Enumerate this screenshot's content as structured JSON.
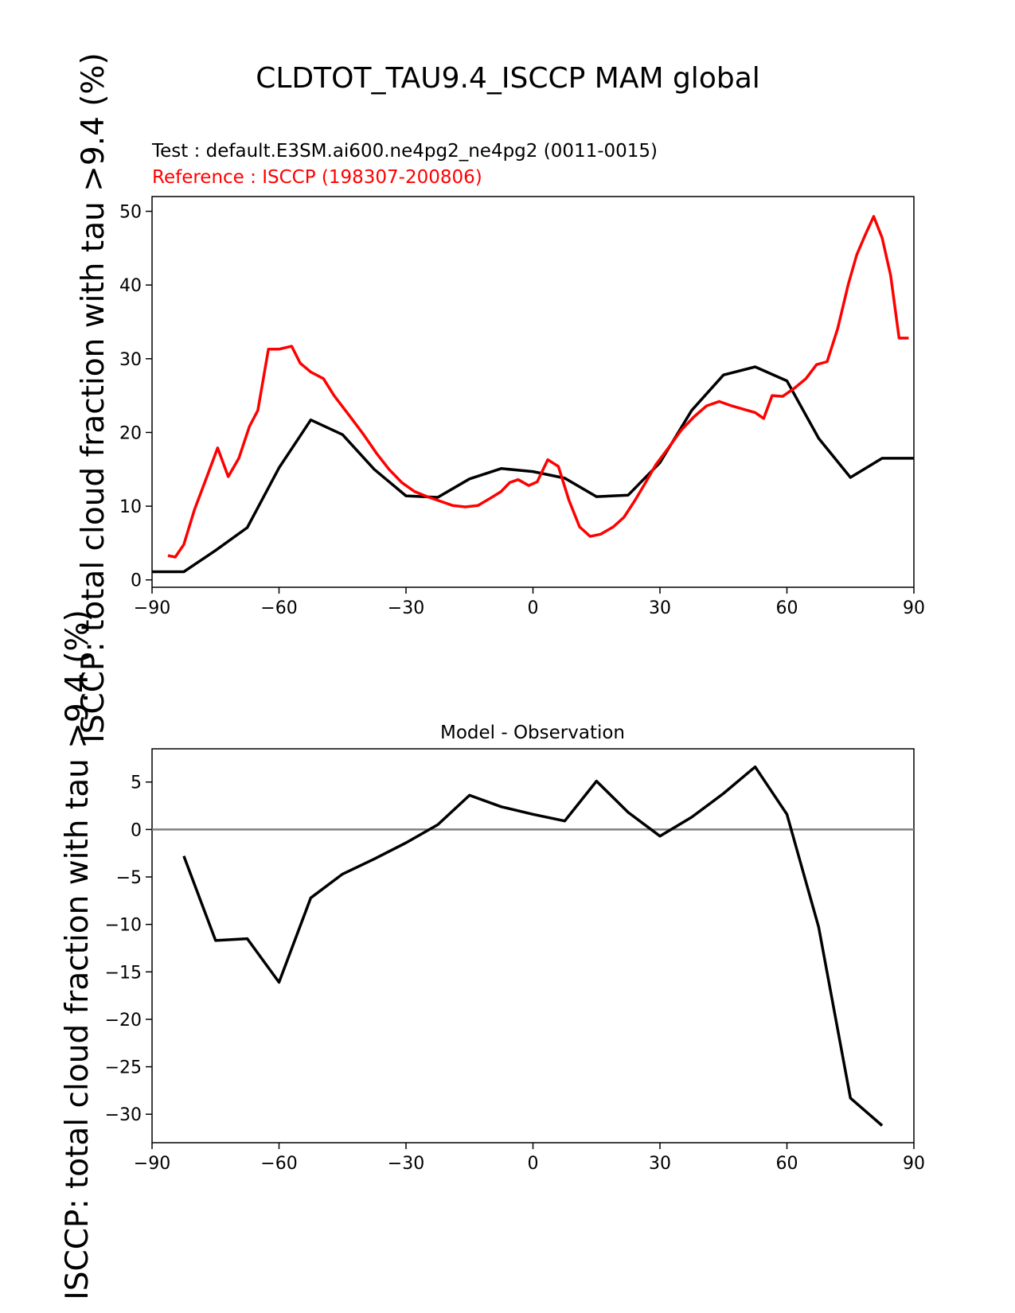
{
  "figure": {
    "title": "CLDTOT_TAU9.4_ISCCP MAM global",
    "ylabel": "ISCCP: total cloud fraction with tau >9.4 (%)"
  },
  "chart_data": [
    {
      "type": "line",
      "test_label": "Test : default.E3SM.ai600.ne4pg2_ne4pg2 (0011-0015)",
      "reference_label": "Reference : ISCCP (198307-200806)",
      "ylabel": "ISCCP: total cloud fraction with tau >9.4 (%)",
      "xlim": [
        -90,
        90
      ],
      "ylim": [
        -1,
        52
      ],
      "xticks": [
        -90,
        -60,
        -30,
        0,
        30,
        60,
        90
      ],
      "yticks": [
        0,
        10,
        20,
        30,
        40,
        50
      ],
      "colors": {
        "test": "#000000",
        "reference": "#ff0000"
      },
      "series": [
        {
          "name": "test",
          "x": [
            -90,
            -82.5,
            -75,
            -67.5,
            -60,
            -52.5,
            -45,
            -37.5,
            -30,
            -22.5,
            -15,
            -7.5,
            0,
            7.5,
            15,
            22.5,
            30,
            37.5,
            45,
            52.5,
            60,
            67.5,
            75,
            82.5,
            90
          ],
          "y": [
            1.1,
            1.1,
            4.0,
            7.1,
            15.2,
            21.7,
            19.7,
            15.0,
            11.4,
            11.2,
            13.7,
            15.1,
            14.7,
            13.8,
            11.3,
            11.5,
            15.9,
            23.0,
            27.8,
            28.9,
            27.0,
            19.2,
            13.9,
            16.5,
            16.5
          ]
        },
        {
          "name": "reference",
          "x": [
            -86.25,
            -84.5,
            -82.5,
            -80,
            -77.5,
            -74.5,
            -72,
            -69.5,
            -67,
            -65,
            -62.5,
            -60,
            -57,
            -55,
            -52.5,
            -49.5,
            -47,
            -43,
            -40,
            -37,
            -34,
            -31,
            -28,
            -25,
            -22,
            -19,
            -16,
            -13,
            -10,
            -7.5,
            -5.5,
            -3.5,
            -1,
            1,
            3.5,
            6,
            8.5,
            11,
            13.5,
            16,
            19,
            21.5,
            24,
            26.5,
            29,
            32,
            35,
            38,
            41,
            44,
            47,
            50,
            52.5,
            54.5,
            56.5,
            59,
            62,
            64.5,
            67,
            69.5,
            72,
            74.5,
            76.5,
            78.5,
            80.5,
            82.5,
            84.5,
            86.5,
            88.75
          ],
          "y": [
            3.3,
            3.1,
            4.8,
            9.5,
            13.3,
            17.9,
            14.0,
            16.5,
            20.8,
            23.0,
            31.3,
            31.3,
            31.7,
            29.4,
            28.2,
            27.3,
            25.0,
            22.0,
            19.7,
            17.2,
            15.0,
            13.2,
            12.0,
            11.3,
            10.7,
            10.1,
            9.9,
            10.1,
            11.1,
            12.0,
            13.2,
            13.6,
            12.8,
            13.3,
            16.3,
            15.4,
            10.8,
            7.2,
            5.9,
            6.2,
            7.2,
            8.5,
            10.7,
            13.1,
            15.6,
            17.9,
            20.3,
            22.1,
            23.6,
            24.2,
            23.6,
            23.1,
            22.7,
            21.9,
            25.0,
            24.9,
            26.1,
            27.3,
            29.2,
            29.6,
            34.1,
            40.1,
            44.1,
            46.8,
            49.3,
            46.4,
            41.3,
            32.8,
            32.8
          ]
        }
      ]
    },
    {
      "type": "line",
      "title": "Model - Observation",
      "ylabel": "ISCCP: total cloud fraction with tau >9.4 (%)",
      "xlim": [
        -90,
        90
      ],
      "ylim": [
        -33,
        8.5
      ],
      "xticks": [
        -90,
        -60,
        -30,
        0,
        30,
        60,
        90
      ],
      "yticks": [
        -30,
        -25,
        -20,
        -15,
        -10,
        -5,
        0,
        5
      ],
      "zero_line_color": "#808080",
      "series": [
        {
          "name": "difference",
          "color": "#000000",
          "x": [
            -82.5,
            -75,
            -67.5,
            -60,
            -52.5,
            -45,
            -37.5,
            -30,
            -22.5,
            -15,
            -7.5,
            0,
            7.5,
            15,
            22.5,
            30,
            37.5,
            45,
            52.5,
            60,
            67.5,
            75,
            82.5
          ],
          "y": [
            -2.8,
            -11.7,
            -11.5,
            -16.1,
            -7.2,
            -4.7,
            -3.1,
            -1.4,
            0.5,
            3.6,
            2.4,
            1.6,
            0.9,
            5.1,
            1.8,
            -0.7,
            1.3,
            3.8,
            6.6,
            1.6,
            -10.3,
            -28.3,
            -31.2
          ]
        }
      ]
    }
  ]
}
